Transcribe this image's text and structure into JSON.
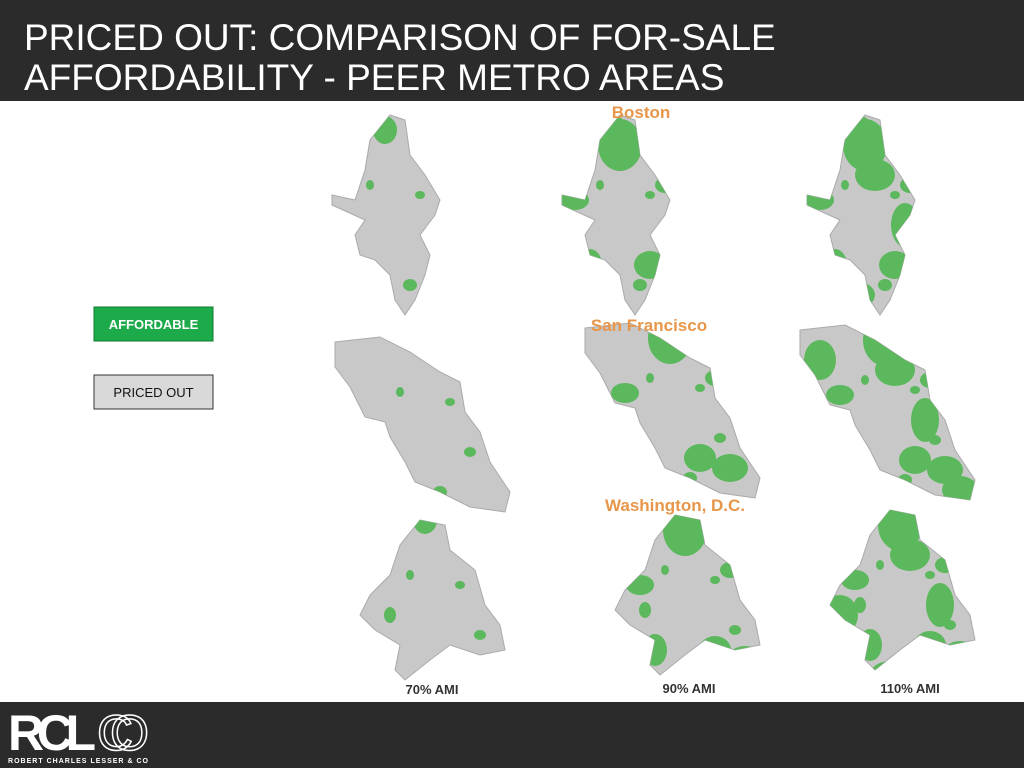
{
  "header": {
    "title": [
      "PRICED OUT:  COMPARISON OF FOR-SALE",
      "AFFORDABILITY - PEER METRO AREAS"
    ]
  },
  "legend": [
    "AFFORDABLE",
    "PRICED OUT"
  ],
  "regions": [
    "Boston",
    "San Francisco",
    "Washington, D.C."
  ],
  "columns": [
    "70% AMI",
    "90% AMI",
    "110% AMI"
  ],
  "footer": {
    "logo_bold": "RCL",
    "logo_light": "CO",
    "company": "ROBERT CHARLES LESSER & CO"
  }
}
